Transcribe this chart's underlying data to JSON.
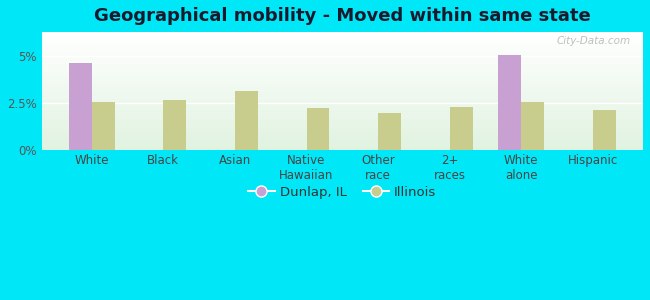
{
  "title": "Geographical mobility - Moved within same state",
  "categories": [
    "White",
    "Black",
    "Asian",
    "Native\nHawaiian",
    "Other\nrace",
    "2+\nraces",
    "White\nalone",
    "Hispanic"
  ],
  "dunlap_values": [
    4.6,
    0,
    0,
    0,
    0,
    0,
    5.05,
    0
  ],
  "illinois_values": [
    2.55,
    2.65,
    3.1,
    2.2,
    1.95,
    2.25,
    2.55,
    2.1
  ],
  "dunlap_color": "#c8a0d2",
  "illinois_color": "#c8cc8c",
  "background_color": "#00e8f8",
  "ylim": [
    0,
    6.25
  ],
  "yticks": [
    0,
    2.5,
    5
  ],
  "ytick_labels": [
    "0%",
    "2.5%",
    "5%"
  ],
  "bar_width": 0.32,
  "legend_labels": [
    "Dunlap, IL",
    "Illinois"
  ],
  "watermark": "City-Data.com",
  "title_fontsize": 13,
  "tick_fontsize": 8.5,
  "legend_fontsize": 9.5
}
